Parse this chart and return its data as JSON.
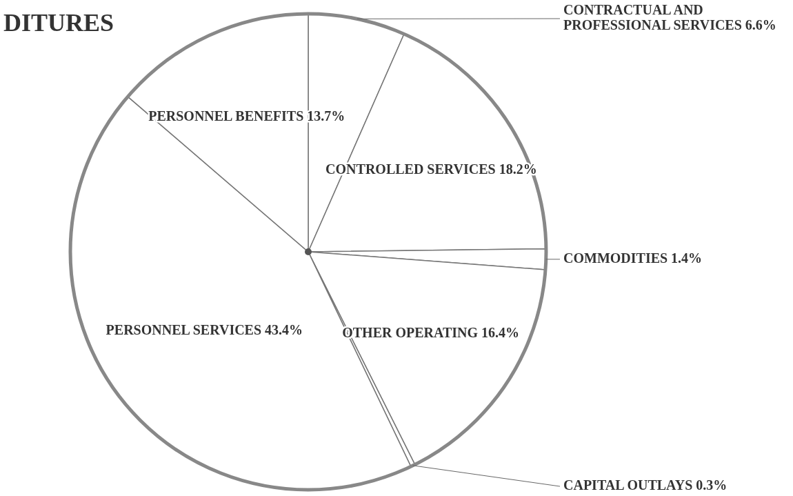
{
  "chart_data": {
    "type": "pie",
    "title": "DITURES",
    "categories": [
      "CONTRACTUAL AND PROFESSIONAL SERVICES",
      "CONTROLLED SERVICES",
      "COMMODITIES",
      "OTHER OPERATING",
      "CAPITAL OUTLAYS",
      "PERSONNEL SERVICES",
      "PERSONNEL BENEFITS"
    ],
    "values": [
      6.6,
      18.2,
      1.4,
      16.4,
      0.3,
      43.4,
      13.7
    ],
    "value_labels": [
      "6.6%",
      "18.2%",
      "1.4%",
      "16.4%",
      "0.3%",
      "43.4%",
      "13.7%"
    ],
    "colors": [
      "#ffffff",
      "#ffffff",
      "#ffffff",
      "#ffffff",
      "#ffffff",
      "#ffffff",
      "#ffffff"
    ]
  }
}
